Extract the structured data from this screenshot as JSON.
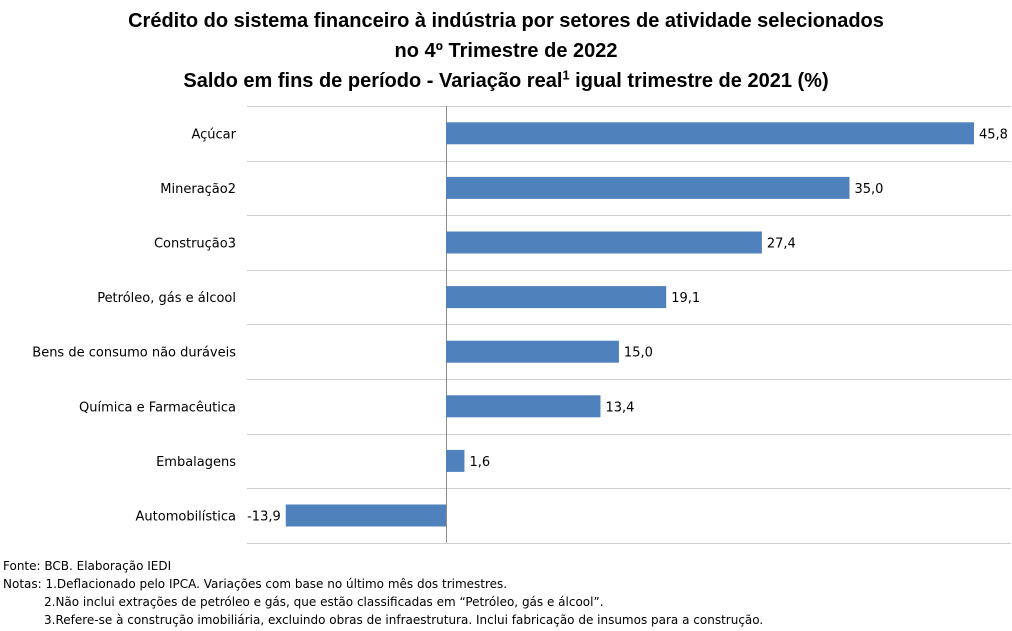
{
  "title": {
    "line1": "Crédito do sistema financeiro à indústria por setores de atividade selecionados",
    "line2": "no 4º Trimestre de 2022",
    "line3_pre": "Saldo em fins de período - Variação real",
    "line3_sup": "1",
    "line3_post": " igual trimestre de 2021 (%)"
  },
  "chart_data": {
    "type": "bar",
    "orientation": "horizontal",
    "categories": [
      "Açúcar",
      "Mineração2",
      "Construção3",
      "Petróleo, gás e álcool",
      "Bens de consumo não duráveis",
      "Química e Farmacêutica",
      "Embalagens",
      "Automobilística"
    ],
    "values": [
      45.8,
      35.0,
      27.4,
      19.1,
      15.0,
      13.4,
      1.6,
      -13.9
    ],
    "value_labels": [
      "45,8",
      "35,0",
      "27,4",
      "19,1",
      "15,0",
      "13,4",
      "1,6",
      "-13,9"
    ],
    "bar_color": "#4f81bd",
    "xlim": [
      -14,
      46
    ],
    "grid": true,
    "xlabel": "",
    "ylabel": ""
  },
  "notes": {
    "source": "Fonte: BCB. Elaboração IEDI",
    "note1": "Notas: 1.Deflacionado pelo IPCA. Variações com base no último mês dos trimestres.",
    "note2": "2.Não inclui extrações de petróleo e gás, que estão classificadas em “Petróleo, gás e álcool”.",
    "note3": "3.Refere-se à construção imobiliária, excluindo obras de infraestrutura. Inclui fabricação de insumos para a construção."
  }
}
